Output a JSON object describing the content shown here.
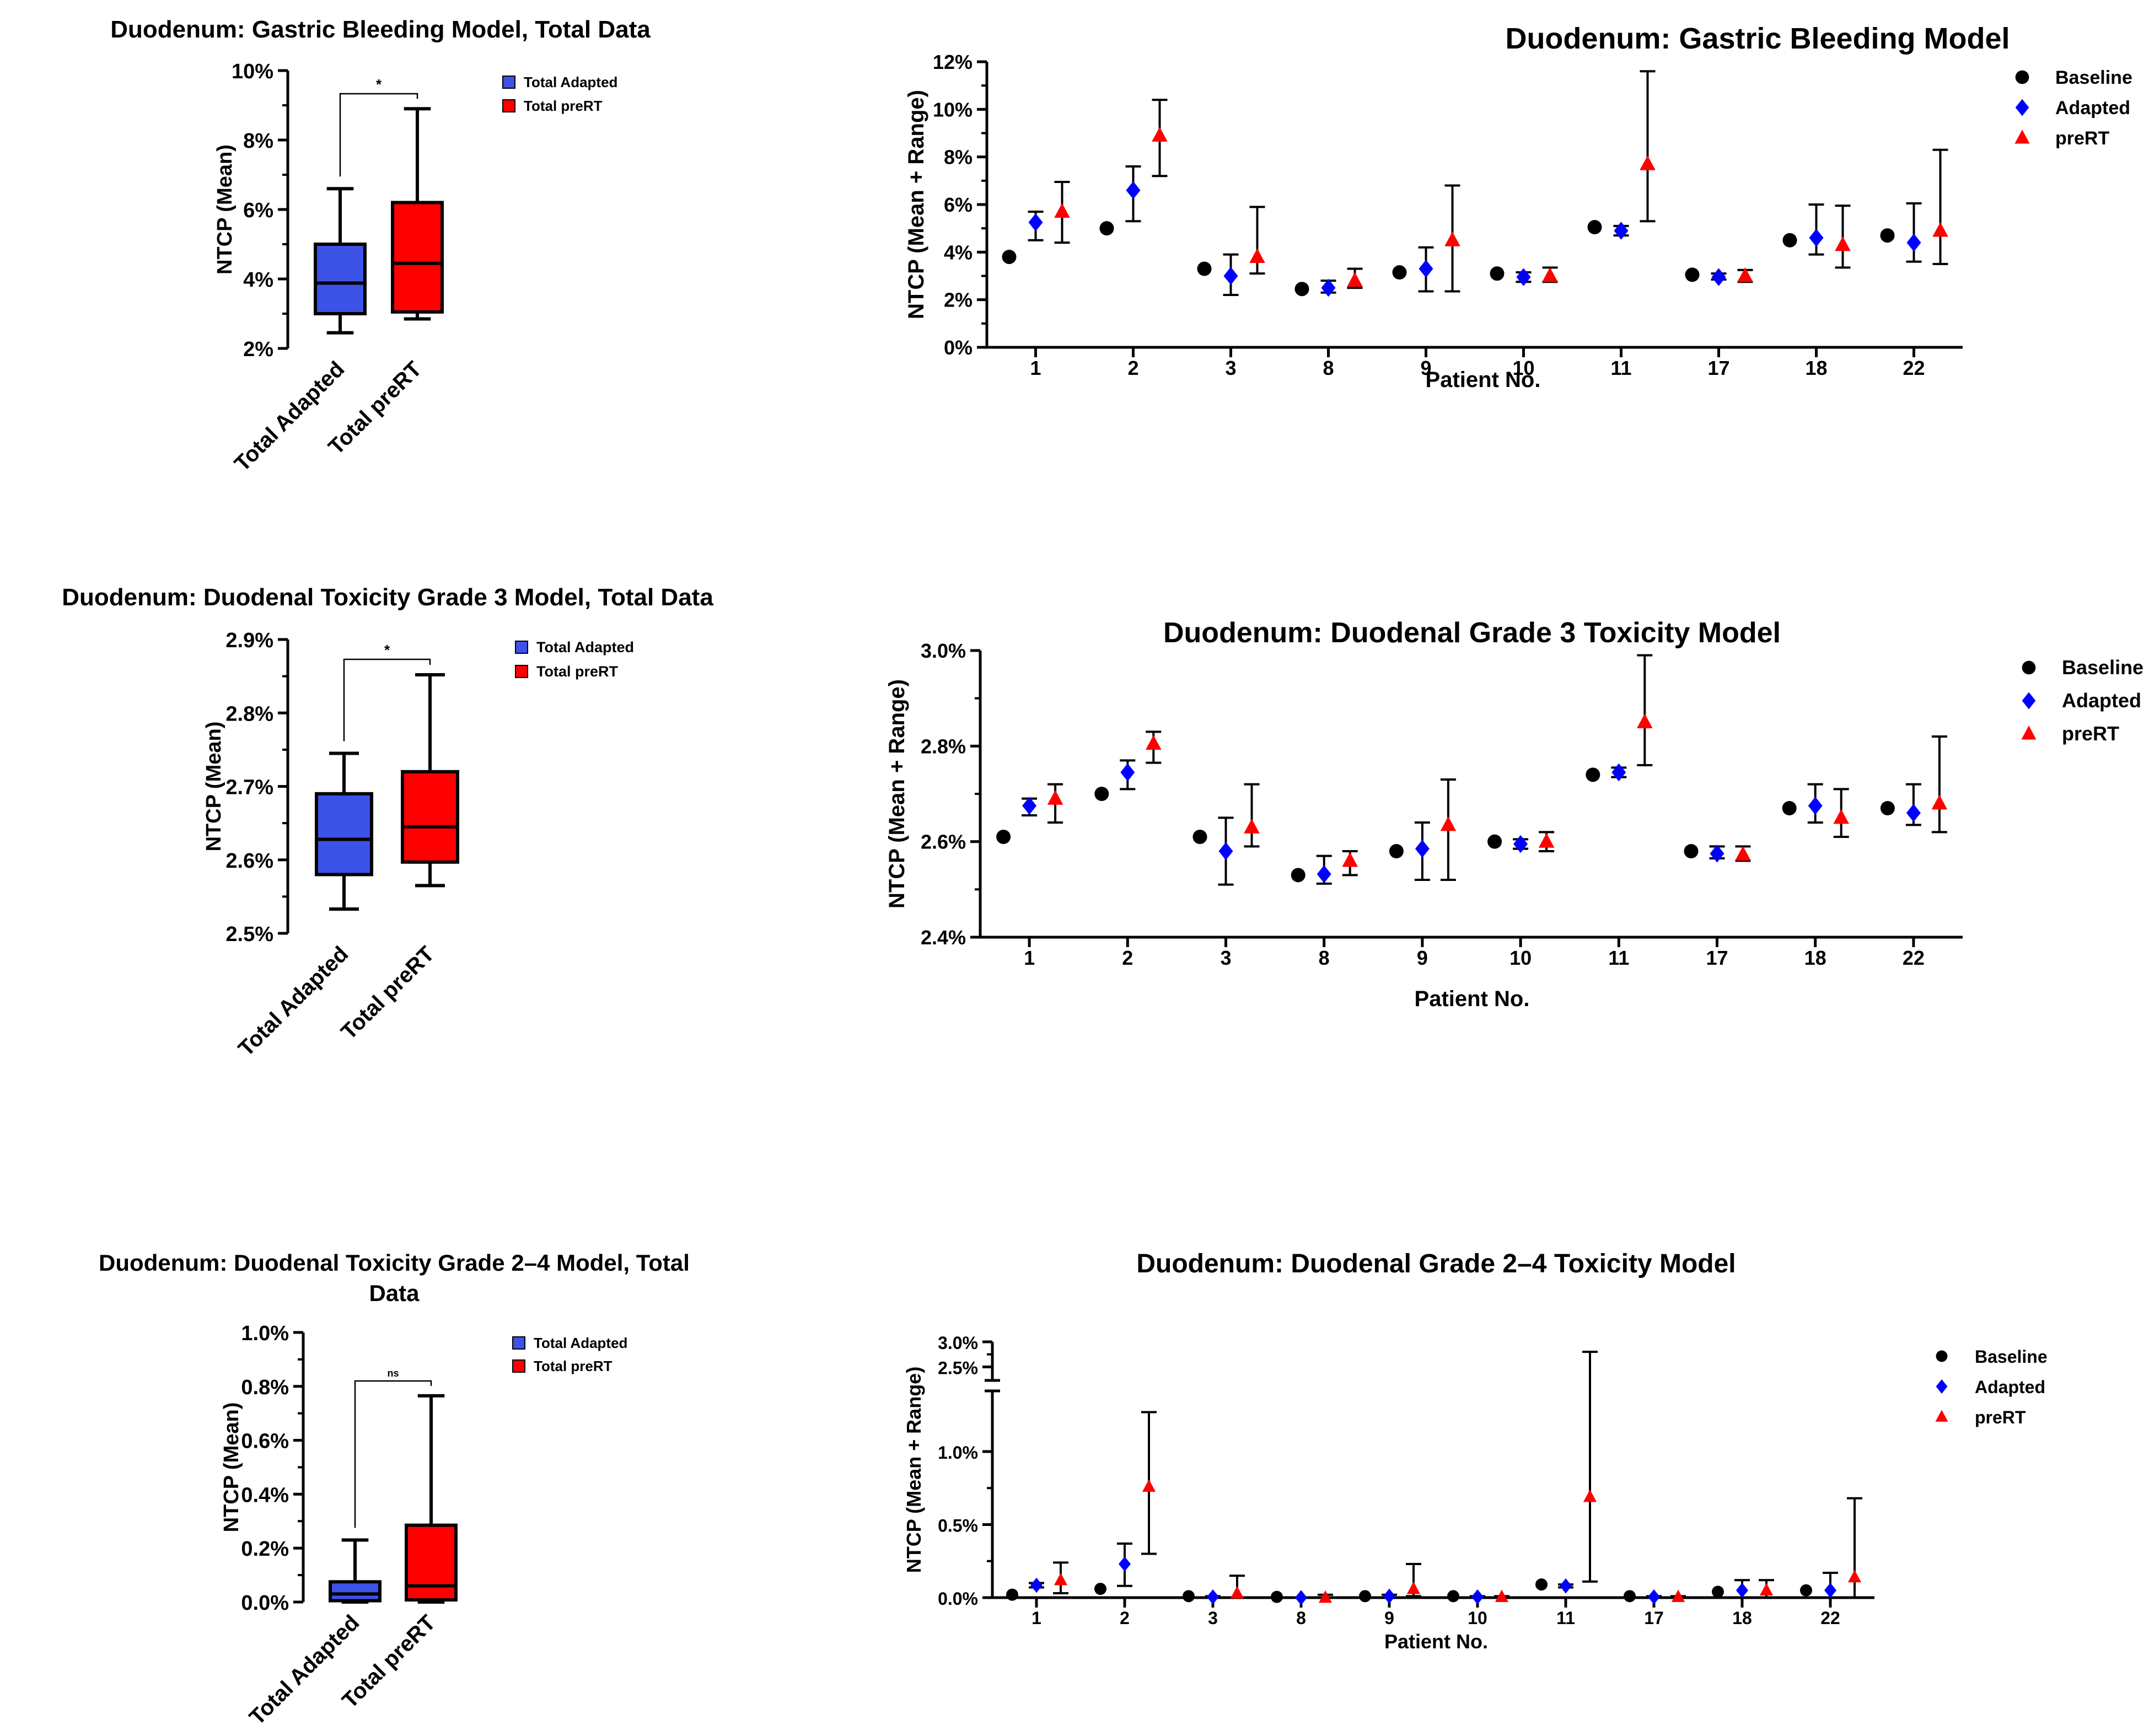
{
  "colors": {
    "baseline": "#000000",
    "adapted": "#0000ff",
    "prert": "#ff0000",
    "boxAdapted": "#3d52e6",
    "boxPrert": "#ff0000"
  },
  "chart_data": [
    {
      "id": "box1",
      "type": "box",
      "title": "Duodenum: Gastric Bleeding Model, Total Data",
      "ylabel": "NTCP (Mean)",
      "ylim": [
        2,
        10
      ],
      "yticks": [
        2,
        4,
        6,
        8,
        10
      ],
      "yunit": "%",
      "ydecimals": 0,
      "categories": [
        "Total Adapted",
        "Total preRT"
      ],
      "boxes": [
        {
          "name": "Total Adapted",
          "min": 2.45,
          "q1": 3.0,
          "median": 3.88,
          "q3": 5.0,
          "max": 6.6
        },
        {
          "name": "Total preRT",
          "min": 2.85,
          "q1": 3.05,
          "median": 4.45,
          "q3": 6.2,
          "max": 8.9
        }
      ],
      "significance": "*",
      "legend": [
        "Total Adapted",
        "Total preRT"
      ]
    },
    {
      "id": "scatter1",
      "type": "scatter",
      "title": "Duodenum: Gastric Bleeding Model",
      "xlabel": "Patient No.",
      "ylabel": "NTCP (Mean + Range)",
      "ylim": [
        0,
        12
      ],
      "yticks": [
        0,
        2,
        4,
        6,
        8,
        10,
        12
      ],
      "yunit": "%",
      "ydecimals": 0,
      "categories": [
        "1",
        "2",
        "3",
        "8",
        "9",
        "10",
        "11",
        "17",
        "18",
        "22"
      ],
      "series": [
        {
          "name": "Baseline",
          "values": [
            3.8,
            5.0,
            3.3,
            2.45,
            3.15,
            3.1,
            5.05,
            3.05,
            4.5,
            4.7
          ],
          "low": [
            null,
            null,
            null,
            null,
            null,
            null,
            null,
            null,
            null,
            null
          ],
          "high": [
            null,
            null,
            null,
            null,
            null,
            null,
            null,
            null,
            null,
            null
          ]
        },
        {
          "name": "Adapted",
          "values": [
            5.25,
            6.6,
            3.0,
            2.5,
            3.3,
            2.95,
            4.9,
            2.95,
            4.6,
            4.4
          ],
          "low": [
            4.5,
            5.3,
            2.2,
            2.3,
            2.35,
            2.75,
            4.7,
            2.85,
            3.9,
            3.6
          ],
          "high": [
            5.7,
            7.6,
            3.9,
            2.8,
            4.2,
            3.15,
            5.1,
            3.1,
            6.0,
            6.05
          ]
        },
        {
          "name": "preRT",
          "values": [
            5.7,
            8.9,
            3.8,
            2.8,
            4.5,
            3.0,
            7.7,
            3.0,
            4.3,
            4.9
          ],
          "low": [
            4.4,
            7.2,
            3.1,
            2.5,
            2.35,
            2.75,
            5.3,
            2.75,
            3.35,
            3.5
          ],
          "high": [
            6.95,
            10.4,
            5.9,
            3.3,
            6.8,
            3.35,
            11.6,
            3.25,
            5.95,
            8.3
          ]
        }
      ],
      "legend": [
        "Baseline",
        "Adapted",
        "preRT"
      ]
    },
    {
      "id": "box2",
      "type": "box",
      "title": "Duodenum: Duodenal Toxicity Grade 3 Model, Total Data",
      "ylabel": "NTCP (Mean)",
      "ylim": [
        2.5,
        2.9
      ],
      "yticks": [
        2.5,
        2.6,
        2.7,
        2.8,
        2.9
      ],
      "yunit": "%",
      "ydecimals": 1,
      "categories": [
        "Total Adapted",
        "Total preRT"
      ],
      "boxes": [
        {
          "name": "Total Adapted",
          "min": 2.533,
          "q1": 2.58,
          "median": 2.628,
          "q3": 2.69,
          "max": 2.745
        },
        {
          "name": "Total preRT",
          "min": 2.565,
          "q1": 2.597,
          "median": 2.645,
          "q3": 2.72,
          "max": 2.852
        }
      ],
      "significance": "*",
      "legend": [
        "Total Adapted",
        "Total preRT"
      ]
    },
    {
      "id": "scatter2",
      "type": "scatter",
      "title": "Duodenum: Duodenal Grade 3 Toxicity Model",
      "xlabel": "Patient No.",
      "ylabel": "NTCP (Mean + Range)",
      "ylim": [
        2.4,
        3.0
      ],
      "yticks": [
        2.4,
        2.6,
        2.8,
        3.0
      ],
      "yunit": "%",
      "ydecimals": 1,
      "categories": [
        "1",
        "2",
        "3",
        "8",
        "9",
        "10",
        "11",
        "17",
        "18",
        "22"
      ],
      "series": [
        {
          "name": "Baseline",
          "values": [
            2.61,
            2.7,
            2.61,
            2.53,
            2.58,
            2.6,
            2.74,
            2.58,
            2.67,
            2.67
          ],
          "low": [
            null,
            null,
            null,
            null,
            null,
            null,
            null,
            null,
            null,
            null
          ],
          "high": [
            null,
            null,
            null,
            null,
            null,
            null,
            null,
            null,
            null,
            null
          ]
        },
        {
          "name": "Adapted",
          "values": [
            2.675,
            2.745,
            2.58,
            2.532,
            2.585,
            2.595,
            2.745,
            2.575,
            2.675,
            2.66
          ],
          "low": [
            2.655,
            2.71,
            2.51,
            2.512,
            2.52,
            2.585,
            2.735,
            2.565,
            2.64,
            2.635
          ],
          "high": [
            2.69,
            2.77,
            2.65,
            2.57,
            2.64,
            2.605,
            2.755,
            2.59,
            2.72,
            2.72
          ]
        },
        {
          "name": "preRT",
          "values": [
            2.69,
            2.805,
            2.63,
            2.56,
            2.635,
            2.6,
            2.85,
            2.573,
            2.65,
            2.68
          ],
          "low": [
            2.64,
            2.765,
            2.59,
            2.53,
            2.52,
            2.58,
            2.76,
            2.56,
            2.61,
            2.62
          ],
          "high": [
            2.72,
            2.83,
            2.72,
            2.58,
            2.73,
            2.62,
            2.99,
            2.59,
            2.71,
            2.82
          ]
        }
      ],
      "legend": [
        "Baseline",
        "Adapted",
        "preRT"
      ]
    },
    {
      "id": "box3",
      "type": "box",
      "title": "Duodenum: Duodenal Toxicity Grade 2–4  Model, Total",
      "title2": "Data",
      "ylabel": "NTCP (Mean)",
      "ylim": [
        0,
        1.0
      ],
      "yticks": [
        0.0,
        0.2,
        0.4,
        0.6,
        0.8,
        1.0
      ],
      "yunit": "%",
      "ydecimals": 1,
      "categories": [
        "Total Adapted",
        "Total preRT"
      ],
      "boxes": [
        {
          "name": "Total Adapted",
          "min": 0.0,
          "q1": 0.005,
          "median": 0.03,
          "q3": 0.075,
          "max": 0.23
        },
        {
          "name": "Total preRT",
          "min": 0.0,
          "q1": 0.008,
          "median": 0.06,
          "q3": 0.285,
          "max": 0.765
        }
      ],
      "significance": "ns",
      "legend": [
        "Total Adapted",
        "Total preRT"
      ]
    },
    {
      "id": "scatter3",
      "type": "scatter",
      "title": "Duodenum: Duodenal Grade 2–4 Toxicity Model",
      "xlabel": "Patient No.",
      "ylabel": "NTCP (Mean + Range)",
      "ylim": [
        0,
        3.0
      ],
      "yticks_low": [
        0.0,
        0.5,
        1.0
      ],
      "yticks_high": [
        2.5,
        3.0
      ],
      "axis_break": [
        1.4,
        2.45
      ],
      "yunit": "%",
      "ydecimals": 1,
      "categories": [
        "1",
        "2",
        "3",
        "8",
        "9",
        "10",
        "11",
        "17",
        "18",
        "22"
      ],
      "series": [
        {
          "name": "Baseline",
          "values": [
            0.02,
            0.06,
            0.01,
            0.005,
            0.01,
            0.01,
            0.09,
            0.01,
            0.04,
            0.05
          ],
          "low": [
            null,
            null,
            null,
            null,
            null,
            null,
            null,
            null,
            null,
            null
          ],
          "high": [
            null,
            null,
            null,
            null,
            null,
            null,
            null,
            null,
            null,
            null
          ]
        },
        {
          "name": "Adapted",
          "values": [
            0.085,
            0.23,
            0.005,
            0.0,
            0.01,
            0.005,
            0.08,
            0.005,
            0.05,
            0.05
          ],
          "low": [
            0.07,
            0.08,
            0.0,
            0.0,
            0.0,
            0.0,
            0.07,
            0.0,
            0.0,
            0.0
          ],
          "high": [
            0.1,
            0.37,
            0.01,
            0.0,
            0.02,
            0.01,
            0.09,
            0.01,
            0.12,
            0.17
          ]
        },
        {
          "name": "preRT",
          "values": [
            0.12,
            0.76,
            0.03,
            0.0,
            0.06,
            0.005,
            0.69,
            0.005,
            0.05,
            0.14
          ],
          "low": [
            0.03,
            0.3,
            0.0,
            0.0,
            0.01,
            0.0,
            0.11,
            0.0,
            0.0,
            0.0
          ],
          "high": [
            0.24,
            1.27,
            0.15,
            0.02,
            0.23,
            0.01,
            2.8,
            0.01,
            0.12,
            0.68
          ]
        }
      ],
      "legend": [
        "Baseline",
        "Adapted",
        "preRT"
      ]
    }
  ]
}
